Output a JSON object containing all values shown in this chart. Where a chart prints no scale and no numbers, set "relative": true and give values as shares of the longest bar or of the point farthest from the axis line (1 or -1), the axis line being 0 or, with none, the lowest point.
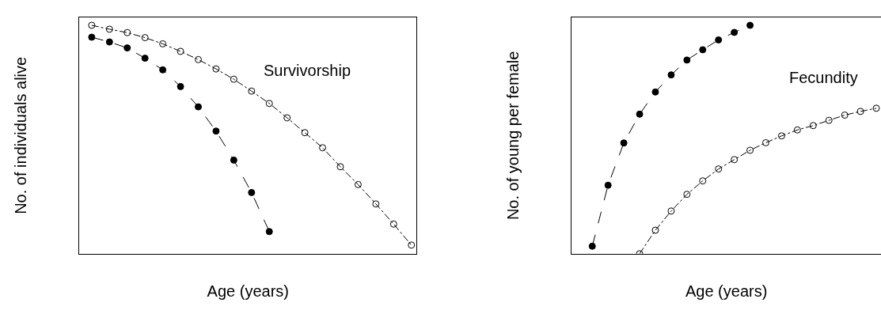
{
  "chart_data": [
    {
      "type": "line",
      "relative": true,
      "xlabel": "Age (years)",
      "ylabel": "No. of individuals alive",
      "annotations": [
        "Survivorship"
      ],
      "tick_labels": false,
      "categories": [
        null,
        null,
        null,
        null,
        null,
        null,
        null,
        null,
        null,
        null,
        null,
        null,
        null,
        null,
        null,
        null,
        null,
        null,
        null
      ],
      "series": [
        {
          "color": "#000000",
          "marker": "circle-open",
          "line_style": "dotted",
          "values": [
            1,
            0.983,
            0.968,
            0.946,
            0.919,
            0.886,
            0.85,
            0.809,
            0.764,
            0.712,
            0.658,
            0.595,
            0.53,
            0.464,
            0.381,
            0.303,
            0.218,
            0.13,
            0.038
          ]
        },
        {
          "color": "#000000",
          "marker": "circle",
          "line_style": "dashed",
          "values": [
            0.948,
            0.927,
            0.901,
            0.856,
            0.805,
            0.732,
            0.643,
            0.537,
            0.41,
            0.268,
            0.097,
            null,
            null,
            null,
            null,
            null,
            null,
            null,
            null
          ]
        }
      ]
    },
    {
      "type": "line",
      "relative": true,
      "xlabel": "Age (years)",
      "ylabel": "No. of young per female",
      "annotations": [
        "Fecundity"
      ],
      "tick_labels": false,
      "categories": [
        null,
        null,
        null,
        null,
        null,
        null,
        null,
        null,
        null,
        null,
        null,
        null,
        null,
        null,
        null,
        null,
        null,
        null,
        null
      ],
      "series": [
        {
          "color": "#000000",
          "marker": "circle",
          "line_style": "dashed",
          "values": [
            0.033,
            0.3,
            0.485,
            0.611,
            0.708,
            0.783,
            0.848,
            0.893,
            0.936,
            0.969,
            1,
            null,
            null,
            null,
            null,
            null,
            null,
            null,
            null
          ]
        },
        {
          "color": "#000000",
          "marker": "circle-open",
          "line_style": "dotted",
          "values": [
            null,
            null,
            null,
            0,
            0.103,
            0.187,
            0.26,
            0.319,
            0.371,
            0.412,
            0.453,
            0.486,
            0.516,
            0.542,
            0.561,
            0.584,
            0.607,
            0.623,
            0.637
          ]
        }
      ]
    }
  ]
}
